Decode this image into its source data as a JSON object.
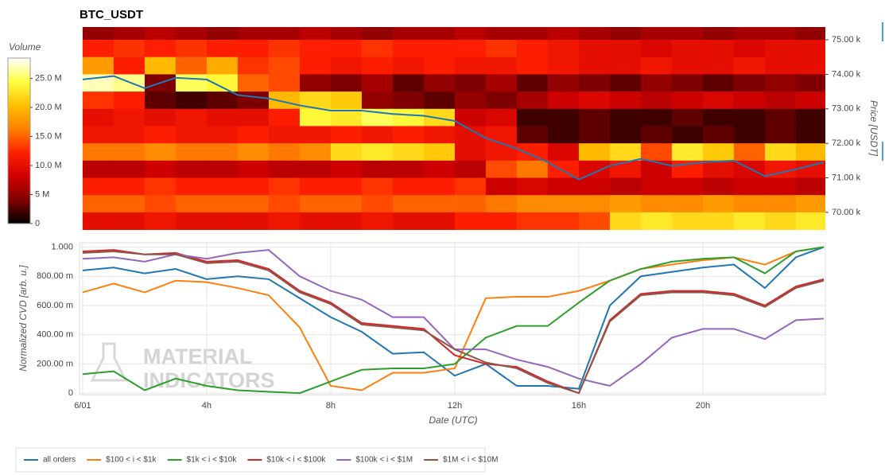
{
  "chart_data": [
    {
      "type": "heatmap",
      "title": "BTC_USDT",
      "y_label": "Price [USDT]",
      "x": [
        0.5,
        1.5,
        2.5,
        3.5,
        4.5,
        5.5,
        6.5,
        7.5,
        8.5,
        9.5,
        10.5,
        11.5,
        12.5,
        13.5,
        14.5,
        15.5,
        16.5,
        17.5,
        18.5,
        19.5,
        20.5,
        21.5,
        22.5,
        23.5
      ],
      "xlim": [
        -0.1,
        23.95
      ],
      "y": [
        75250,
        74750,
        74250,
        73750,
        73250,
        72750,
        72250,
        71750,
        71250,
        70750,
        70250,
        69750
      ],
      "ylim": [
        69490,
        75370
      ],
      "yticks": [
        {
          "value": 70000,
          "label": "70.00 k"
        },
        {
          "value": 71000,
          "label": "71.00 k"
        },
        {
          "value": 72000,
          "label": "72.00 k"
        },
        {
          "value": 73000,
          "label": "73.00 k"
        },
        {
          "value": 74000,
          "label": "74.00 k"
        },
        {
          "value": 75000,
          "label": "75.00 k"
        }
      ],
      "z": [
        [
          5000000,
          6000000,
          7000000,
          6000000,
          5000000,
          6000000,
          6000000,
          7000000,
          6000000,
          5000000,
          6000000,
          6000000,
          7000000,
          6000000,
          6000000,
          7000000,
          6000000,
          5000000,
          6000000,
          6000000,
          5000000,
          6000000,
          6000000,
          5000000
        ],
        [
          12000000,
          13000000,
          12000000,
          13000000,
          12000000,
          12000000,
          13000000,
          12000000,
          12000000,
          13000000,
          12000000,
          12000000,
          12000000,
          13000000,
          12000000,
          11000000,
          10000000,
          10000000,
          9000000,
          10000000,
          10000000,
          9000000,
          10000000,
          10000000
        ],
        [
          18000000,
          12000000,
          20000000,
          15000000,
          19000000,
          13000000,
          14000000,
          12000000,
          11000000,
          12000000,
          11000000,
          12000000,
          11000000,
          11000000,
          12000000,
          11000000,
          10000000,
          10000000,
          11000000,
          10000000,
          10000000,
          11000000,
          10000000,
          10000000
        ],
        [
          27000000,
          26000000,
          4000000,
          25000000,
          24000000,
          15000000,
          14000000,
          5000000,
          4000000,
          6000000,
          3000000,
          5000000,
          4000000,
          6000000,
          3000000,
          5000000,
          4000000,
          3000000,
          5000000,
          4000000,
          3000000,
          4000000,
          5000000,
          4000000
        ],
        [
          13000000,
          12000000,
          3000000,
          2000000,
          3000000,
          4000000,
          20000000,
          22000000,
          21000000,
          5000000,
          4000000,
          3000000,
          5000000,
          4000000,
          6000000,
          8000000,
          9000000,
          8000000,
          7000000,
          8000000,
          9000000,
          8000000,
          7000000,
          8000000
        ],
        [
          10000000,
          11000000,
          10000000,
          11000000,
          10000000,
          10000000,
          12000000,
          24000000,
          23000000,
          25000000,
          24000000,
          22000000,
          8000000,
          9000000,
          2000000,
          2000000,
          3000000,
          2000000,
          2000000,
          3000000,
          2000000,
          2000000,
          3000000,
          2000000
        ],
        [
          11000000,
          11000000,
          12000000,
          11000000,
          11000000,
          12000000,
          11000000,
          11000000,
          12000000,
          11000000,
          12000000,
          11000000,
          10000000,
          11000000,
          3000000,
          2000000,
          3000000,
          2000000,
          3000000,
          2000000,
          3000000,
          2000000,
          3000000,
          2000000
        ],
        [
          16000000,
          16000000,
          17000000,
          16000000,
          16000000,
          17000000,
          16000000,
          17000000,
          22000000,
          23000000,
          22000000,
          21000000,
          10000000,
          11000000,
          12000000,
          9000000,
          20000000,
          22000000,
          14000000,
          23000000,
          21000000,
          15000000,
          22000000,
          20000000
        ],
        [
          7000000,
          7000000,
          8000000,
          7000000,
          7000000,
          8000000,
          7000000,
          7000000,
          8000000,
          7000000,
          7000000,
          8000000,
          7000000,
          14000000,
          16000000,
          12000000,
          9000000,
          11000000,
          8000000,
          12000000,
          10000000,
          9000000,
          11000000,
          10000000
        ],
        [
          12000000,
          12000000,
          13000000,
          12000000,
          12000000,
          12000000,
          13000000,
          12000000,
          12000000,
          13000000,
          12000000,
          12000000,
          13000000,
          8000000,
          9000000,
          8000000,
          8000000,
          7000000,
          8000000,
          8000000,
          7000000,
          8000000,
          8000000,
          7000000
        ],
        [
          15000000,
          15000000,
          14000000,
          15000000,
          15000000,
          15000000,
          14000000,
          15000000,
          15000000,
          14000000,
          15000000,
          15000000,
          15000000,
          16000000,
          17000000,
          17000000,
          17000000,
          18000000,
          17000000,
          17000000,
          18000000,
          17000000,
          17000000,
          18000000
        ],
        [
          10000000,
          10000000,
          11000000,
          10000000,
          10000000,
          10000000,
          11000000,
          10000000,
          10000000,
          11000000,
          10000000,
          10000000,
          12000000,
          12000000,
          13000000,
          13000000,
          14000000,
          22000000,
          23000000,
          22000000,
          22000000,
          23000000,
          22000000,
          23000000
        ]
      ],
      "colorbar": {
        "label": "Volume",
        "zlim": [
          0,
          28500000
        ],
        "ticks": [
          0,
          {
            "value": 5000000,
            "label": "5 M"
          },
          {
            "value": 10000000,
            "label": "10.0 M"
          },
          {
            "value": 15000000,
            "label": "15.0 M"
          },
          {
            "value": 20000000,
            "label": "20.0 M"
          },
          {
            "value": 25000000,
            "label": "25.0 M"
          }
        ],
        "colorscale": [
          "#000000",
          "#800000",
          "#d00000",
          "#ff2000",
          "#ff8000",
          "#ffc000",
          "#ffff40",
          "#ffffff"
        ]
      },
      "price_line": {
        "color": "#1f77b4",
        "x": [
          0,
          1,
          2,
          3,
          4,
          5,
          6,
          7,
          8,
          9,
          10,
          11,
          12,
          13,
          14,
          15,
          16,
          17,
          18,
          19,
          20,
          21,
          22,
          23,
          23.9
        ],
        "values": [
          73850,
          73950,
          73600,
          73900,
          73850,
          73400,
          73300,
          73100,
          72950,
          72950,
          72850,
          72800,
          72650,
          72150,
          71850,
          71450,
          70950,
          71350,
          71550,
          71350,
          71450,
          71500,
          71050,
          71250,
          71450
        ]
      }
    },
    {
      "type": "line",
      "x_label": "Date (UTC)",
      "y_label": "Normalized CVD [arb. u.]",
      "x": [
        0,
        1,
        2,
        3,
        4,
        5,
        6,
        7,
        8,
        9,
        10,
        11,
        12,
        13,
        14,
        15,
        16,
        17,
        18,
        19,
        20,
        21,
        22,
        23,
        23.9
      ],
      "xlim": [
        -0.1,
        23.95
      ],
      "xticks": [
        {
          "value": 0,
          "label": "6/01"
        },
        {
          "value": 4,
          "label": "4h"
        },
        {
          "value": 8,
          "label": "8h"
        },
        {
          "value": 12,
          "label": "12h"
        },
        {
          "value": 16,
          "label": "16h"
        },
        {
          "value": 20,
          "label": "20h"
        }
      ],
      "ylim": [
        -0.01,
        1.03
      ],
      "yticks": [
        0,
        {
          "value": 0.2,
          "label": "200.00 m"
        },
        {
          "value": 0.4,
          "label": "400.00 m"
        },
        {
          "value": 0.6,
          "label": "600.00 m"
        },
        {
          "value": 0.8,
          "label": "800.00 m"
        },
        {
          "value": 1,
          "label": "1.000"
        }
      ],
      "grid": true,
      "legend": "bottom-left",
      "watermark": [
        "MATERIAL",
        "INDICATORS"
      ],
      "series": [
        {
          "name": "all orders",
          "color": "#1f77b4",
          "values": [
            0.84,
            0.86,
            0.82,
            0.85,
            0.78,
            0.8,
            0.78,
            0.65,
            0.52,
            0.42,
            0.27,
            0.28,
            0.12,
            0.2,
            0.05,
            0.05,
            0.03,
            0.6,
            0.8,
            0.83,
            0.86,
            0.88,
            0.72,
            0.93,
            1.0
          ]
        },
        {
          "name": "$100 < i < $1k",
          "color": "#ff7f0e",
          "values": [
            0.69,
            0.75,
            0.69,
            0.77,
            0.76,
            0.72,
            0.67,
            0.45,
            0.05,
            0.02,
            0.14,
            0.14,
            0.17,
            0.65,
            0.66,
            0.66,
            0.7,
            0.77,
            0.85,
            0.88,
            0.91,
            0.93,
            0.88,
            0.97,
            1.0
          ]
        },
        {
          "name": "$1k < i < $10k",
          "color": "#2ca02c",
          "values": [
            0.13,
            0.15,
            0.02,
            0.1,
            0.05,
            0.02,
            0.01,
            0.0,
            0.08,
            0.16,
            0.17,
            0.17,
            0.2,
            0.38,
            0.46,
            0.46,
            0.62,
            0.77,
            0.85,
            0.9,
            0.92,
            0.93,
            0.82,
            0.97,
            1.0
          ]
        },
        {
          "name": "$10k < i < $100k",
          "color": "#d62728",
          "values": [
            0.97,
            0.98,
            0.95,
            0.96,
            0.9,
            0.91,
            0.85,
            0.7,
            0.62,
            0.48,
            0.46,
            0.44,
            0.26,
            0.2,
            0.18,
            0.08,
            0.0,
            0.5,
            0.68,
            0.7,
            0.7,
            0.68,
            0.6,
            0.73,
            0.78
          ]
        },
        {
          "name": "$100k < i < $1M",
          "color": "#9467bd",
          "values": [
            0.92,
            0.93,
            0.9,
            0.95,
            0.92,
            0.96,
            0.98,
            0.8,
            0.7,
            0.64,
            0.52,
            0.52,
            0.3,
            0.3,
            0.23,
            0.18,
            0.1,
            0.05,
            0.2,
            0.38,
            0.44,
            0.44,
            0.37,
            0.5,
            0.51
          ]
        },
        {
          "name": "$1M < i < $10M",
          "color": "#8c564b",
          "values": [
            0.96,
            0.97,
            0.95,
            0.95,
            0.89,
            0.9,
            0.84,
            0.69,
            0.61,
            0.47,
            0.45,
            0.43,
            0.3,
            0.21,
            0.17,
            0.07,
            0.0,
            0.49,
            0.67,
            0.69,
            0.69,
            0.67,
            0.59,
            0.72,
            0.77
          ]
        }
      ]
    }
  ]
}
